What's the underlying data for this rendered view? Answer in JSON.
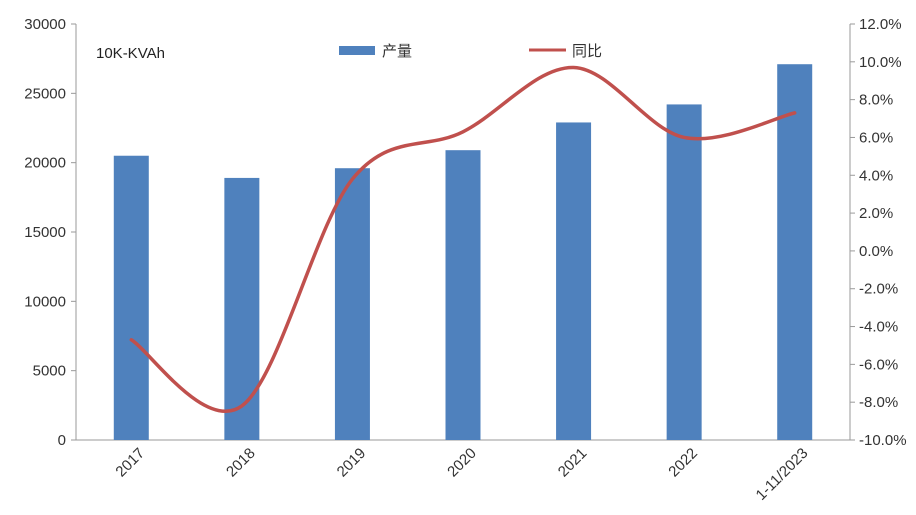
{
  "chart_data": {
    "type": "bar",
    "unit_label": "10K-KVAh",
    "categories": [
      "2017",
      "2018",
      "2019",
      "2020",
      "2021",
      "2022",
      "1-11/2023"
    ],
    "series": [
      {
        "name": "产量",
        "type": "bar",
        "axis": "left",
        "color": "#4f81bd",
        "values": [
          20500,
          18900,
          19600,
          20900,
          22900,
          24200,
          27100
        ]
      },
      {
        "name": "同比",
        "type": "line",
        "axis": "right",
        "color": "#c0504d",
        "values": [
          -4.7,
          -8.2,
          3.8,
          6.3,
          9.7,
          6.0,
          7.3
        ]
      }
    ],
    "left_axis": {
      "ylim": [
        0,
        30000
      ],
      "ticks": [
        0,
        5000,
        10000,
        15000,
        20000,
        25000,
        30000
      ],
      "tick_labels": [
        "0",
        "5000",
        "10000",
        "15000",
        "20000",
        "25000",
        "30000"
      ]
    },
    "right_axis": {
      "ylim": [
        -10,
        12
      ],
      "ticks": [
        -10,
        -8,
        -6,
        -4,
        -2,
        0,
        2,
        4,
        6,
        8,
        10,
        12
      ],
      "tick_labels": [
        "-10.0%",
        "-8.0%",
        "-6.0%",
        "-4.0%",
        "-2.0%",
        "0.0%",
        "2.0%",
        "4.0%",
        "6.0%",
        "8.0%",
        "10.0%",
        "12.0%"
      ]
    },
    "legend_position": "top",
    "grid": false
  }
}
